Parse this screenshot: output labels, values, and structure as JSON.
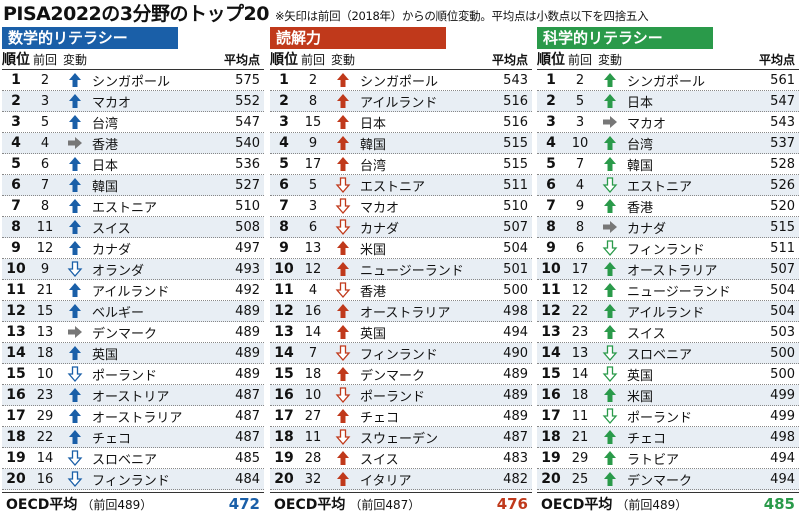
{
  "title": "PISA2022の3分野のトップ20",
  "note": "※矢印は前回（2018年）からの順位変動。平均点は小数点以下を四捨五入",
  "headers": {
    "rank": "順位",
    "prev": "前回",
    "change": "変動",
    "score": "平均点"
  },
  "colors": {
    "math": "#1a5fa8",
    "reading": "#c0391b",
    "science": "#2a9a4a",
    "same": "#777777",
    "shade": "#e8eef4"
  },
  "icons": {
    "up": "arrow-up-icon",
    "down": "arrow-down-outline-icon",
    "same": "arrow-right-icon"
  },
  "panels": [
    {
      "key": "math",
      "title": "数学的リテラシー",
      "color": "#1a5fa8",
      "rows": [
        {
          "rank": "1",
          "prev": "2",
          "change": "up",
          "name": "シンガポール",
          "score": "575"
        },
        {
          "rank": "2",
          "prev": "3",
          "change": "up",
          "name": "マカオ",
          "score": "552"
        },
        {
          "rank": "3",
          "prev": "5",
          "change": "up",
          "name": "台湾",
          "score": "547"
        },
        {
          "rank": "4",
          "prev": "4",
          "change": "same",
          "name": "香港",
          "score": "540"
        },
        {
          "rank": "5",
          "prev": "6",
          "change": "up",
          "name": "日本",
          "score": "536"
        },
        {
          "rank": "6",
          "prev": "7",
          "change": "up",
          "name": "韓国",
          "score": "527"
        },
        {
          "rank": "7",
          "prev": "8",
          "change": "up",
          "name": "エストニア",
          "score": "510"
        },
        {
          "rank": "8",
          "prev": "11",
          "change": "up",
          "name": "スイス",
          "score": "508"
        },
        {
          "rank": "9",
          "prev": "12",
          "change": "up",
          "name": "カナダ",
          "score": "497"
        },
        {
          "rank": "10",
          "prev": "9",
          "change": "down",
          "name": "オランダ",
          "score": "493"
        },
        {
          "rank": "11",
          "prev": "21",
          "change": "up",
          "name": "アイルランド",
          "score": "492"
        },
        {
          "rank": "12",
          "prev": "15",
          "change": "up",
          "name": "ベルギー",
          "score": "489"
        },
        {
          "rank": "13",
          "prev": "13",
          "change": "same",
          "name": "デンマーク",
          "score": "489"
        },
        {
          "rank": "14",
          "prev": "18",
          "change": "up",
          "name": "英国",
          "score": "489"
        },
        {
          "rank": "15",
          "prev": "10",
          "change": "down",
          "name": "ポーランド",
          "score": "489"
        },
        {
          "rank": "16",
          "prev": "23",
          "change": "up",
          "name": "オーストリア",
          "score": "487"
        },
        {
          "rank": "17",
          "prev": "29",
          "change": "up",
          "name": "オーストラリア",
          "score": "487"
        },
        {
          "rank": "18",
          "prev": "22",
          "change": "up",
          "name": "チェコ",
          "score": "487"
        },
        {
          "rank": "19",
          "prev": "14",
          "change": "down",
          "name": "スロベニア",
          "score": "485"
        },
        {
          "rank": "20",
          "prev": "16",
          "change": "down",
          "name": "フィンランド",
          "score": "484"
        }
      ],
      "oecd": {
        "label": "OECD平均",
        "prev": "（前回489）",
        "value": "472"
      }
    },
    {
      "key": "reading",
      "title": "読解力",
      "color": "#c0391b",
      "rows": [
        {
          "rank": "1",
          "prev": "2",
          "change": "up",
          "name": "シンガポール",
          "score": "543"
        },
        {
          "rank": "2",
          "prev": "8",
          "change": "up",
          "name": "アイルランド",
          "score": "516"
        },
        {
          "rank": "3",
          "prev": "15",
          "change": "up",
          "name": "日本",
          "score": "516"
        },
        {
          "rank": "4",
          "prev": "9",
          "change": "up",
          "name": "韓国",
          "score": "515"
        },
        {
          "rank": "5",
          "prev": "17",
          "change": "up",
          "name": "台湾",
          "score": "515"
        },
        {
          "rank": "6",
          "prev": "5",
          "change": "down",
          "name": "エストニア",
          "score": "511"
        },
        {
          "rank": "7",
          "prev": "3",
          "change": "down",
          "name": "マカオ",
          "score": "510"
        },
        {
          "rank": "8",
          "prev": "6",
          "change": "down",
          "name": "カナダ",
          "score": "507"
        },
        {
          "rank": "9",
          "prev": "13",
          "change": "up",
          "name": "米国",
          "score": "504"
        },
        {
          "rank": "10",
          "prev": "12",
          "change": "up",
          "name": "ニュージーランド",
          "score": "501"
        },
        {
          "rank": "11",
          "prev": "4",
          "change": "down",
          "name": "香港",
          "score": "500"
        },
        {
          "rank": "12",
          "prev": "16",
          "change": "up",
          "name": "オーストラリア",
          "score": "498"
        },
        {
          "rank": "13",
          "prev": "14",
          "change": "up",
          "name": "英国",
          "score": "494"
        },
        {
          "rank": "14",
          "prev": "7",
          "change": "down",
          "name": "フィンランド",
          "score": "490"
        },
        {
          "rank": "15",
          "prev": "18",
          "change": "up",
          "name": "デンマーク",
          "score": "489"
        },
        {
          "rank": "16",
          "prev": "10",
          "change": "down",
          "name": "ポーランド",
          "score": "489"
        },
        {
          "rank": "17",
          "prev": "27",
          "change": "up",
          "name": "チェコ",
          "score": "489"
        },
        {
          "rank": "18",
          "prev": "11",
          "change": "down",
          "name": "スウェーデン",
          "score": "487"
        },
        {
          "rank": "19",
          "prev": "28",
          "change": "up",
          "name": "スイス",
          "score": "483"
        },
        {
          "rank": "20",
          "prev": "32",
          "change": "up",
          "name": "イタリア",
          "score": "482"
        }
      ],
      "oecd": {
        "label": "OECD平均",
        "prev": "（前回487）",
        "value": "476"
      }
    },
    {
      "key": "science",
      "title": "科学的リテラシー",
      "color": "#2a9a4a",
      "rows": [
        {
          "rank": "1",
          "prev": "2",
          "change": "up",
          "name": "シンガポール",
          "score": "561"
        },
        {
          "rank": "2",
          "prev": "5",
          "change": "up",
          "name": "日本",
          "score": "547"
        },
        {
          "rank": "3",
          "prev": "3",
          "change": "same",
          "name": "マカオ",
          "score": "543"
        },
        {
          "rank": "4",
          "prev": "10",
          "change": "up",
          "name": "台湾",
          "score": "537"
        },
        {
          "rank": "5",
          "prev": "7",
          "change": "up",
          "name": "韓国",
          "score": "528"
        },
        {
          "rank": "6",
          "prev": "4",
          "change": "down",
          "name": "エストニア",
          "score": "526"
        },
        {
          "rank": "7",
          "prev": "9",
          "change": "up",
          "name": "香港",
          "score": "520"
        },
        {
          "rank": "8",
          "prev": "8",
          "change": "same",
          "name": "カナダ",
          "score": "515"
        },
        {
          "rank": "9",
          "prev": "6",
          "change": "down",
          "name": "フィンランド",
          "score": "511"
        },
        {
          "rank": "10",
          "prev": "17",
          "change": "up",
          "name": "オーストラリア",
          "score": "507"
        },
        {
          "rank": "11",
          "prev": "12",
          "change": "up",
          "name": "ニュージーランド",
          "score": "504"
        },
        {
          "rank": "12",
          "prev": "22",
          "change": "up",
          "name": "アイルランド",
          "score": "504"
        },
        {
          "rank": "13",
          "prev": "23",
          "change": "up",
          "name": "スイス",
          "score": "503"
        },
        {
          "rank": "14",
          "prev": "13",
          "change": "down",
          "name": "スロベニア",
          "score": "500"
        },
        {
          "rank": "15",
          "prev": "14",
          "change": "down",
          "name": "英国",
          "score": "500"
        },
        {
          "rank": "16",
          "prev": "18",
          "change": "up",
          "name": "米国",
          "score": "499"
        },
        {
          "rank": "17",
          "prev": "11",
          "change": "down",
          "name": "ポーランド",
          "score": "499"
        },
        {
          "rank": "18",
          "prev": "21",
          "change": "up",
          "name": "チェコ",
          "score": "498"
        },
        {
          "rank": "19",
          "prev": "29",
          "change": "up",
          "name": "ラトビア",
          "score": "494"
        },
        {
          "rank": "20",
          "prev": "25",
          "change": "up",
          "name": "デンマーク",
          "score": "494"
        }
      ],
      "oecd": {
        "label": "OECD平均",
        "prev": "（前回489）",
        "value": "485"
      }
    }
  ]
}
